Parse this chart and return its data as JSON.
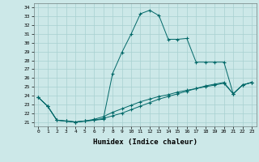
{
  "xlabel": "Humidex (Indice chaleur)",
  "background_color": "#cce8e8",
  "grid_color": "#a8d0d0",
  "line_color": "#006868",
  "xlim": [
    -0.5,
    23.5
  ],
  "ylim": [
    20.5,
    34.5
  ],
  "yticks": [
    21,
    22,
    23,
    24,
    25,
    26,
    27,
    28,
    29,
    30,
    31,
    32,
    33,
    34
  ],
  "xticks": [
    0,
    1,
    2,
    3,
    4,
    5,
    6,
    7,
    8,
    9,
    10,
    11,
    12,
    13,
    14,
    15,
    16,
    17,
    18,
    19,
    20,
    21,
    22,
    23
  ],
  "line1_x": [
    0,
    1,
    2,
    3,
    4,
    5,
    6,
    7,
    8,
    9,
    10,
    11,
    12,
    13,
    14,
    15,
    16,
    17,
    18,
    19,
    20,
    21,
    22,
    23
  ],
  "line1_y": [
    23.8,
    22.8,
    21.2,
    21.1,
    21.0,
    21.1,
    21.2,
    21.3,
    26.5,
    28.9,
    31.0,
    33.3,
    33.7,
    33.1,
    30.4,
    30.4,
    30.5,
    27.8,
    27.8,
    27.8,
    27.8,
    24.2,
    25.2,
    25.5
  ],
  "line2_x": [
    0,
    1,
    2,
    3,
    4,
    5,
    6,
    7,
    8,
    9,
    10,
    11,
    12,
    13,
    14,
    15,
    16,
    17,
    18,
    19,
    20,
    21,
    22,
    23
  ],
  "line2_y": [
    23.8,
    22.8,
    21.2,
    21.1,
    21.0,
    21.1,
    21.2,
    21.4,
    21.7,
    22.0,
    22.4,
    22.8,
    23.2,
    23.6,
    23.9,
    24.2,
    24.5,
    24.8,
    25.1,
    25.3,
    25.5,
    24.2,
    25.2,
    25.5
  ],
  "line3_x": [
    0,
    1,
    2,
    3,
    4,
    5,
    6,
    7,
    8,
    9,
    10,
    11,
    12,
    13,
    14,
    15,
    16,
    17,
    18,
    19,
    20,
    21,
    22,
    23
  ],
  "line3_y": [
    23.8,
    22.8,
    21.2,
    21.1,
    21.0,
    21.1,
    21.3,
    21.6,
    22.1,
    22.5,
    22.9,
    23.3,
    23.6,
    23.9,
    24.1,
    24.4,
    24.6,
    24.8,
    25.0,
    25.2,
    25.4,
    24.2,
    25.2,
    25.5
  ]
}
